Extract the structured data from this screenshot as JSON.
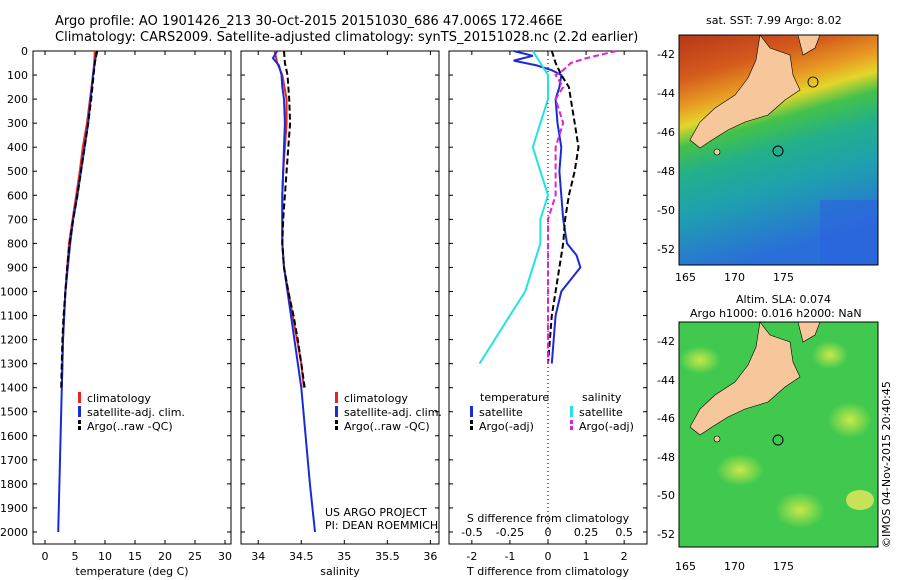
{
  "header": {
    "line1": "Argo profile: AO 1901426_213 30-Oct-2015 20151030_686 47.006S 172.466E",
    "line2": "Climatology: CARS2009. Satellite-adjusted climatology: synTS_20151028.nc (2.2d earlier)"
  },
  "credit": {
    "line1": "US ARGO PROJECT",
    "line2": "PI: DEAN ROEMMICH"
  },
  "watermark": "©IMOS 04-Nov-2015 20:40:45",
  "colors": {
    "climatology": "#e8251b",
    "satellite": "#1a2bd6",
    "argo": "#000000",
    "sal_satellite": "#21e3e3",
    "sal_argo": "#e020d8",
    "coast": "#f5c79a"
  },
  "depth_ticks": [
    "0",
    "100",
    "200",
    "300",
    "400",
    "500",
    "600",
    "700",
    "800",
    "900",
    "1000",
    "1100",
    "1200",
    "1300",
    "1400",
    "1500",
    "1600",
    "1700",
    "1800",
    "1900",
    "2000"
  ],
  "legend_temp": {
    "items": [
      {
        "label": "climatology",
        "color": "#e8251b",
        "dash": false
      },
      {
        "label": "satellite-adj. clim.",
        "color": "#1a2bd6",
        "dash": false
      },
      {
        "label": "Argo(..raw -QC)",
        "color": "#000000",
        "dash": true
      }
    ]
  },
  "legend_sal": {
    "items": [
      {
        "label": "climatology",
        "color": "#e8251b",
        "dash": false
      },
      {
        "label": "satellite-adj. clim.",
        "color": "#1a2bd6",
        "dash": false
      },
      {
        "label": "Argo(..raw -QC)",
        "color": "#000000",
        "dash": true
      }
    ]
  },
  "legend_diff": {
    "temperature_title": "temperature",
    "salinity_title": "salinity",
    "t_items": [
      {
        "label": "satellite",
        "color": "#1a2bd6",
        "dash": false
      },
      {
        "label": "Argo(-adj)",
        "color": "#000000",
        "dash": true
      }
    ],
    "s_items": [
      {
        "label": "satellite",
        "color": "#21e3e3",
        "dash": false
      },
      {
        "label": "Argo(-adj)",
        "color": "#e020d8",
        "dash": true
      }
    ]
  },
  "maps": {
    "sst": {
      "title": "sat. SST: 7.99 Argo: 8.02",
      "title2": "",
      "lat_ticks": [
        "-42",
        "-44",
        "-46",
        "-48",
        "-50",
        "-52"
      ],
      "lon_ticks": [
        "165",
        "170",
        "175"
      ]
    },
    "sla": {
      "title": "Altim. SLA: 0.074",
      "title2": "Argo h1000: 0.016 h2000: NaN",
      "lat_ticks": [
        "-42",
        "-44",
        "-46",
        "-48",
        "-50",
        "-52"
      ],
      "lon_ticks": [
        "165",
        "170",
        "175"
      ]
    }
  },
  "chart_data": [
    {
      "type": "line",
      "xlabel": "temperature (deg C)",
      "ylabel": "",
      "xlim": [
        -2,
        31
      ],
      "ylim": [
        0,
        2050
      ],
      "xticks": [
        "0",
        "5",
        "10",
        "15",
        "20",
        "25",
        "30"
      ],
      "series": [
        {
          "name": "climatology",
          "color": "#e8251b",
          "dash": false,
          "depth": [
            0,
            50,
            100,
            200,
            300,
            400,
            500,
            600,
            700,
            800,
            900,
            1000,
            1100,
            1200,
            1300,
            1400
          ],
          "x": [
            8.3,
            8.2,
            8.0,
            7.5,
            7.0,
            6.3,
            5.8,
            5.2,
            4.6,
            4.0,
            3.7,
            3.4,
            3.2,
            3.0,
            2.9,
            2.8
          ]
        },
        {
          "name": "satellite-adj. clim.",
          "color": "#1a2bd6",
          "dash": false,
          "depth": [
            0,
            50,
            100,
            200,
            300,
            400,
            500,
            600,
            700,
            800,
            900,
            1000,
            1200,
            1400,
            1600,
            1800,
            2000
          ],
          "x": [
            8.6,
            8.3,
            8.0,
            7.6,
            7.2,
            6.6,
            6.0,
            5.4,
            4.7,
            4.2,
            3.8,
            3.4,
            3.0,
            2.8,
            2.6,
            2.4,
            2.2
          ]
        },
        {
          "name": "Argo(..raw -QC)",
          "color": "#000000",
          "dash": true,
          "depth": [
            0,
            50,
            100,
            200,
            300,
            400,
            500,
            600,
            700,
            800,
            900,
            1000,
            1100,
            1200,
            1300,
            1400
          ],
          "x": [
            8.7,
            8.3,
            8.1,
            7.7,
            7.2,
            6.6,
            6.0,
            5.4,
            4.7,
            4.1,
            3.7,
            3.4,
            3.1,
            2.9,
            2.8,
            2.7
          ]
        }
      ]
    },
    {
      "type": "line",
      "xlabel": "salinity",
      "ylabel": "",
      "xlim": [
        33.8,
        36.1
      ],
      "ylim": [
        0,
        2050
      ],
      "xticks": [
        "34",
        "34.5",
        "35",
        "35.5",
        "36"
      ],
      "series": [
        {
          "name": "climatology",
          "color": "#e8251b",
          "dash": false,
          "depth": [
            0,
            50,
            100,
            200,
            300,
            400,
            500,
            600,
            700,
            800,
            900,
            1000,
            1100,
            1200,
            1300,
            1400
          ],
          "x": [
            34.19,
            34.22,
            34.28,
            34.33,
            34.33,
            34.31,
            34.29,
            34.28,
            34.28,
            34.28,
            34.3,
            34.35,
            34.4,
            34.45,
            34.5,
            34.53
          ]
        },
        {
          "name": "satellite-adj. clim.",
          "color": "#1a2bd6",
          "dash": false,
          "depth": [
            0,
            30,
            60,
            100,
            150,
            200,
            300,
            400,
            500,
            600,
            700,
            800,
            900,
            1000,
            1200,
            1400,
            1600,
            1800,
            2000
          ],
          "x": [
            34.22,
            34.17,
            34.24,
            34.27,
            34.28,
            34.3,
            34.31,
            34.3,
            34.29,
            34.28,
            34.28,
            34.28,
            34.3,
            34.34,
            34.42,
            34.5,
            34.55,
            34.6,
            34.66
          ]
        },
        {
          "name": "Argo(..raw -QC)",
          "color": "#000000",
          "dash": true,
          "depth": [
            0,
            50,
            100,
            200,
            300,
            400,
            500,
            600,
            700,
            800,
            900,
            1000,
            1100,
            1200,
            1300,
            1400
          ],
          "x": [
            34.3,
            34.31,
            34.34,
            34.36,
            34.37,
            34.35,
            34.33,
            34.31,
            34.29,
            34.28,
            34.3,
            34.35,
            34.41,
            34.46,
            34.5,
            34.54
          ]
        }
      ]
    },
    {
      "type": "line",
      "xlabel": "T difference from climatology",
      "xlabel_top": "S difference from climatology",
      "xlim": [
        -2.6,
        2.6
      ],
      "ylim": [
        0,
        2050
      ],
      "xticks": [
        "-2",
        "-1",
        "0",
        "1",
        "2"
      ],
      "xticks_top": [
        "-0.5",
        "-0.25",
        "0",
        "0.25",
        "0.5"
      ],
      "series": [
        {
          "name": "T satellite",
          "color": "#1a2bd6",
          "dash": false,
          "depth": [
            0,
            20,
            40,
            60,
            80,
            100,
            150,
            200,
            300,
            400,
            500,
            600,
            700,
            800,
            850,
            900,
            950,
            1000,
            1100,
            1200,
            1300
          ],
          "x": [
            -0.9,
            -0.4,
            -0.9,
            -0.3,
            0.1,
            0.35,
            0.3,
            0.2,
            0.25,
            0.35,
            0.3,
            0.35,
            0.4,
            0.5,
            0.75,
            0.85,
            0.6,
            0.35,
            0.2,
            0.15,
            0.1
          ]
        },
        {
          "name": "T Argo(-adj)",
          "color": "#000000",
          "dash": true,
          "depth": [
            0,
            50,
            100,
            150,
            200,
            300,
            400,
            500,
            600,
            700,
            800,
            900,
            1000,
            1100,
            1200,
            1300
          ],
          "x": [
            0.1,
            0.2,
            0.35,
            0.55,
            0.6,
            0.7,
            0.8,
            0.7,
            0.55,
            0.45,
            0.4,
            0.3,
            0.2,
            0.1,
            0.05,
            0.0
          ]
        },
        {
          "name": "S satellite",
          "color": "#21e3e3",
          "dash": false,
          "depth": [
            0,
            50,
            100,
            200,
            300,
            400,
            500,
            600,
            700,
            800,
            900,
            1000,
            1100,
            1200,
            1300
          ],
          "x": [
            -0.1,
            -0.05,
            0.0,
            0.0,
            -0.05,
            -0.1,
            -0.05,
            0.0,
            -0.05,
            -0.05,
            -0.1,
            -0.15,
            -0.25,
            -0.35,
            -0.45
          ]
        },
        {
          "name": "S Argo(-adj)",
          "color": "#e020d8",
          "dash": true,
          "depth": [
            0,
            30,
            50,
            80,
            100,
            150,
            200,
            300,
            400,
            500,
            600,
            700,
            800,
            900,
            1000,
            1100,
            1200,
            1300
          ],
          "x": [
            0.45,
            0.25,
            0.15,
            0.1,
            0.05,
            0.1,
            0.05,
            0.1,
            0.05,
            0.05,
            0.05,
            0.0,
            0.0,
            0.0,
            0.0,
            0.0,
            0.0,
            0.0
          ]
        }
      ]
    }
  ]
}
